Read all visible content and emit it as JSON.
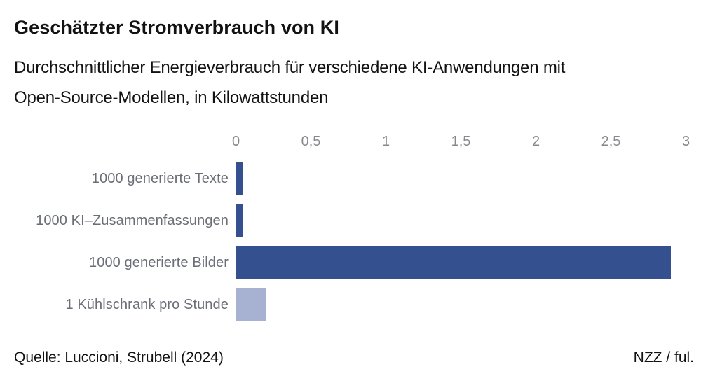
{
  "header": {
    "title": "Geschätzter Stromverbrauch von KI",
    "subtitle_lines": [
      "Durchschnittlicher Energieverbrauch für verschiedene KI-Anwendungen mit",
      "Open-Source-Modellen, in Kilowattstunden"
    ]
  },
  "chart_data": {
    "type": "bar",
    "orientation": "horizontal",
    "title": "Geschätzter Stromverbrauch von KI",
    "subtitle": "Durchschnittlicher Energieverbrauch für verschiedene KI-Anwendungen mit Open-Source-Modellen, in Kilowattstunden",
    "unit": "Kilowattstunden",
    "categories": [
      "1000 generierte Texte",
      "1000 KI–Zusammenfassungen",
      "1000 generierte Bilder",
      "1 Kühlschrank pro Stunde"
    ],
    "values": [
      0.05,
      0.05,
      2.9,
      0.2
    ],
    "bar_styles": [
      "primary",
      "primary",
      "primary",
      "reference"
    ],
    "xlim": [
      0,
      3
    ],
    "xticks": [
      {
        "label": "0",
        "value": 0
      },
      {
        "label": "0,5",
        "value": 0.5
      },
      {
        "label": "1",
        "value": 1
      },
      {
        "label": "1,5",
        "value": 1.5
      },
      {
        "label": "2",
        "value": 2
      },
      {
        "label": "2,5",
        "value": 2.5
      },
      {
        "label": "3",
        "value": 3
      }
    ],
    "grid": true,
    "legend": "none",
    "colors": {
      "primary": "#35508F",
      "reference": "#A7B1D1",
      "gridline": "#DBDCDE",
      "tick_label": "#85888E",
      "category_label": "#6B6E76",
      "text": "#121212"
    }
  },
  "footer": {
    "source": "Quelle: Luccioni, Strubell (2024)",
    "credit": "NZZ / ful."
  }
}
